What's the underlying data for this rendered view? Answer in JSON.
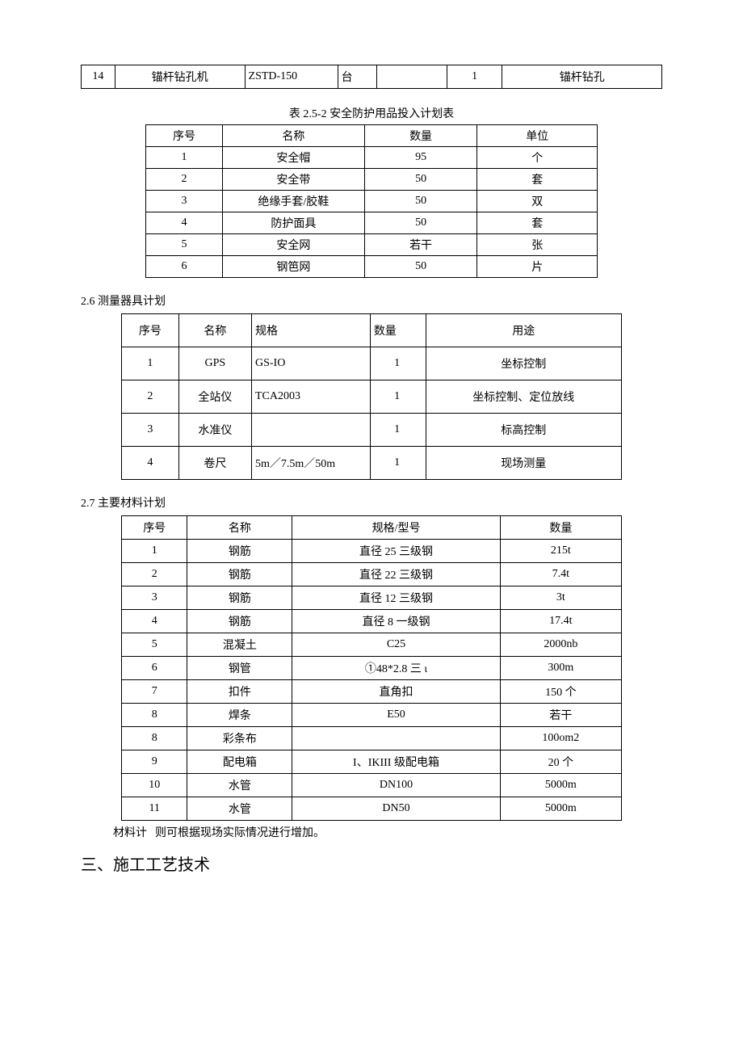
{
  "table1": {
    "row": [
      "14",
      "锚杆钻孔机",
      "ZSTD-150",
      "台",
      "",
      "1",
      "锚杆钻孔"
    ]
  },
  "table2": {
    "caption": "表 2.5-2 安全防护用品投入计划表",
    "headers": [
      "序号",
      "名称",
      "数量",
      "单位"
    ],
    "rows": [
      [
        "1",
        "安全帽",
        "95",
        "个"
      ],
      [
        "2",
        "安全带",
        "50",
        "套"
      ],
      [
        "3",
        "绝缘手套/胶鞋",
        "50",
        "双"
      ],
      [
        "4",
        "防护面具",
        "50",
        "套"
      ],
      [
        "5",
        "安全网",
        "若干",
        "张"
      ],
      [
        "6",
        "钢笆网",
        "50",
        "片"
      ]
    ]
  },
  "section26": {
    "title": "2.6  测量器具计划",
    "headers": [
      "序号",
      "名称",
      "规格",
      "数量",
      "用途"
    ],
    "rows": [
      [
        "1",
        "GPS",
        "GS-IO",
        "1",
        "坐标控制"
      ],
      [
        "2",
        "全站仪",
        "TCA2003",
        "1",
        "坐标控制、定位放线"
      ],
      [
        "3",
        "水准仪",
        "",
        "1",
        "标高控制"
      ],
      [
        "4",
        "卷尺",
        "5m／7.5m／50m",
        "1",
        "现场测量"
      ]
    ]
  },
  "section27": {
    "title": "2.7  主要材料计划",
    "headers": [
      "序号",
      "名称",
      "规格/型号",
      "数量"
    ],
    "rows": [
      [
        "1",
        "钢筋",
        "直径 25 三级钢",
        "215t"
      ],
      [
        "2",
        "钢筋",
        "直径 22 三级钢",
        "7.4t"
      ],
      [
        "3",
        "钢筋",
        "直径 12 三级钢",
        "3t"
      ],
      [
        "4",
        "钢筋",
        "直径 8 一级钢",
        "17.4t"
      ],
      [
        "5",
        "混凝土",
        "C25",
        "2000nb"
      ],
      [
        "6",
        "钢管",
        "①48*2.8 三 ι",
        "300m"
      ],
      [
        "7",
        "扣件",
        "直角扣",
        "150 个"
      ],
      [
        "8",
        "焊条",
        "E50",
        "若干"
      ],
      [
        "8",
        "彩条布",
        "",
        "100om2"
      ],
      [
        "9",
        "配电箱",
        "I、IKIII 级配电箱",
        "20 个"
      ],
      [
        "10",
        "水管",
        "DN100",
        "5000m"
      ],
      [
        "11",
        "水管",
        "DN50",
        "5000m"
      ]
    ]
  },
  "note_prefix": "材料计",
  "note_rest": "则可根据现场实际情况进行增加。",
  "heading3": "三、施工工艺技术"
}
